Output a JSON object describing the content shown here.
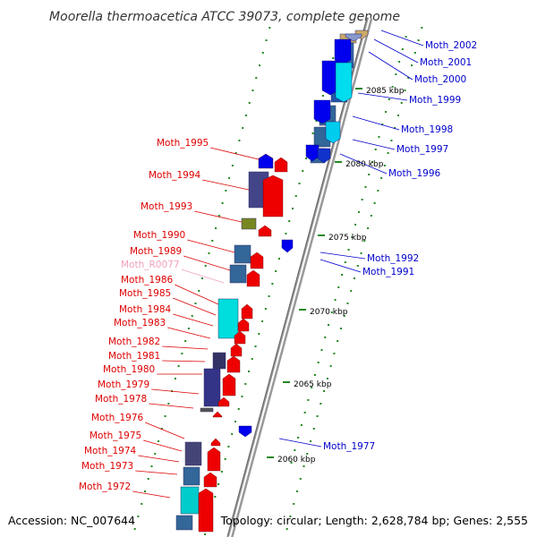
{
  "title": "Moorella thermoacetica ATCC 39073, complete genome",
  "accession": "Accession: NC_007644",
  "topology": "Topology: circular; Length: 2,628,784 bp; Genes: 2,555",
  "colors": {
    "forward_label": "#dd0000",
    "reverse_label": "#0000cc",
    "rna_label": "#f0a0c0",
    "backbone": "#999999",
    "tick_marks": "#228822"
  },
  "ticks": [
    {
      "label": "2085 kbp"
    },
    {
      "label": "2080 kbp"
    },
    {
      "label": "2075 kbp"
    },
    {
      "label": "2070 kbp"
    },
    {
      "label": "2065 kbp"
    },
    {
      "label": "2060 kbp"
    }
  ],
  "forward_genes": [
    {
      "label": "Moth_1995"
    },
    {
      "label": "Moth_1994"
    },
    {
      "label": "Moth_1993"
    },
    {
      "label": "Moth_1990"
    },
    {
      "label": "Moth_1989"
    },
    {
      "label": "Moth_R0077"
    },
    {
      "label": "Moth_1986"
    },
    {
      "label": "Moth_1985"
    },
    {
      "label": "Moth_1984"
    },
    {
      "label": "Moth_1983"
    },
    {
      "label": "Moth_1982"
    },
    {
      "label": "Moth_1981"
    },
    {
      "label": "Moth_1980"
    },
    {
      "label": "Moth_1979"
    },
    {
      "label": "Moth_1978"
    },
    {
      "label": "Moth_1976"
    },
    {
      "label": "Moth_1975"
    },
    {
      "label": "Moth_1974"
    },
    {
      "label": "Moth_1973"
    },
    {
      "label": "Moth_1972"
    }
  ],
  "reverse_genes": [
    {
      "label": "Moth_2002"
    },
    {
      "label": "Moth_2001"
    },
    {
      "label": "Moth_2000"
    },
    {
      "label": "Moth_1999"
    },
    {
      "label": "Moth_1998"
    },
    {
      "label": "Moth_1997"
    },
    {
      "label": "Moth_1996"
    },
    {
      "label": "Moth_1992"
    },
    {
      "label": "Moth_1991"
    },
    {
      "label": "Moth_1977"
    }
  ]
}
